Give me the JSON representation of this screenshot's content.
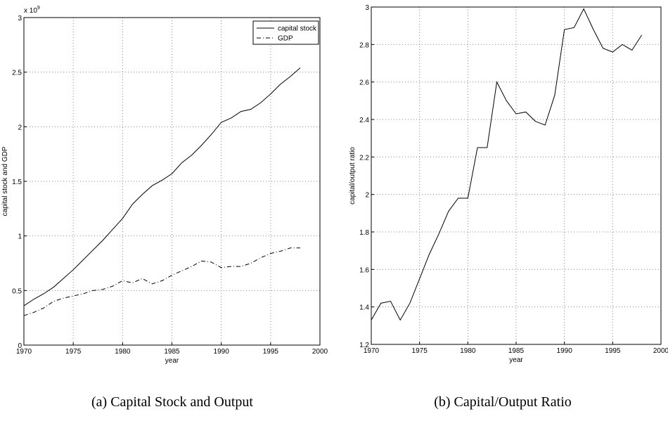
{
  "chart_data": [
    {
      "type": "line",
      "caption": "(a) Capital Stock and Output",
      "xlabel": "year",
      "ylabel": "capital stock and GDP",
      "y_multiplier": {
        "base": "x 10",
        "exponent": "9"
      },
      "x": [
        1970,
        1971,
        1972,
        1973,
        1974,
        1975,
        1976,
        1977,
        1978,
        1979,
        1980,
        1981,
        1982,
        1983,
        1984,
        1985,
        1986,
        1987,
        1988,
        1989,
        1990,
        1991,
        1992,
        1993,
        1994,
        1995,
        1996,
        1997,
        1998
      ],
      "series": [
        {
          "name": "capital stock",
          "color": "#000000",
          "style": "solid",
          "values": [
            0.36,
            0.42,
            0.47,
            0.53,
            0.61,
            0.69,
            0.78,
            0.87,
            0.96,
            1.06,
            1.16,
            1.29,
            1.38,
            1.46,
            1.51,
            1.57,
            1.67,
            1.74,
            1.83,
            1.93,
            2.04,
            2.08,
            2.14,
            2.16,
            2.22,
            2.3,
            2.39,
            2.46,
            2.54
          ]
        },
        {
          "name": "GDP",
          "color": "#000000",
          "style": "dashdot",
          "values": [
            0.27,
            0.3,
            0.34,
            0.4,
            0.43,
            0.45,
            0.47,
            0.5,
            0.51,
            0.54,
            0.59,
            0.57,
            0.61,
            0.56,
            0.59,
            0.64,
            0.68,
            0.72,
            0.77,
            0.76,
            0.71,
            0.72,
            0.72,
            0.75,
            0.8,
            0.84,
            0.86,
            0.89,
            0.89
          ]
        }
      ],
      "xlim": [
        1970,
        2000
      ],
      "xticks": [
        1970,
        1975,
        1980,
        1985,
        1990,
        1995,
        2000
      ],
      "ylim": [
        0,
        3
      ],
      "yticks": [
        0,
        0.5,
        1,
        1.5,
        2,
        2.5,
        3
      ],
      "grid": true,
      "legend": "upper-right"
    },
    {
      "type": "line",
      "caption": "(b) Capital/Output Ratio",
      "xlabel": "year",
      "ylabel": "capital/output ratio",
      "x": [
        1970,
        1971,
        1972,
        1973,
        1974,
        1975,
        1976,
        1977,
        1978,
        1979,
        1980,
        1981,
        1982,
        1983,
        1984,
        1985,
        1986,
        1987,
        1988,
        1989,
        1990,
        1991,
        1992,
        1993,
        1994,
        1995,
        1996,
        1997,
        1998
      ],
      "series": [
        {
          "color": "#000000",
          "style": "solid",
          "values": [
            1.33,
            1.42,
            1.43,
            1.33,
            1.42,
            1.55,
            1.68,
            1.79,
            1.91,
            1.98,
            1.98,
            2.25,
            2.25,
            2.6,
            2.5,
            2.43,
            2.44,
            2.39,
            2.37,
            2.53,
            2.88,
            2.89,
            2.99,
            2.88,
            2.78,
            2.76,
            2.8,
            2.77,
            2.85
          ]
        }
      ],
      "xlim": [
        1970,
        2000
      ],
      "xticks": [
        1970,
        1975,
        1980,
        1985,
        1990,
        1995,
        2000
      ],
      "ylim": [
        1.2,
        3
      ],
      "yticks": [
        1.2,
        1.4,
        1.6,
        1.8,
        2,
        2.2,
        2.4,
        2.6,
        2.8,
        3
      ],
      "grid": true
    }
  ]
}
